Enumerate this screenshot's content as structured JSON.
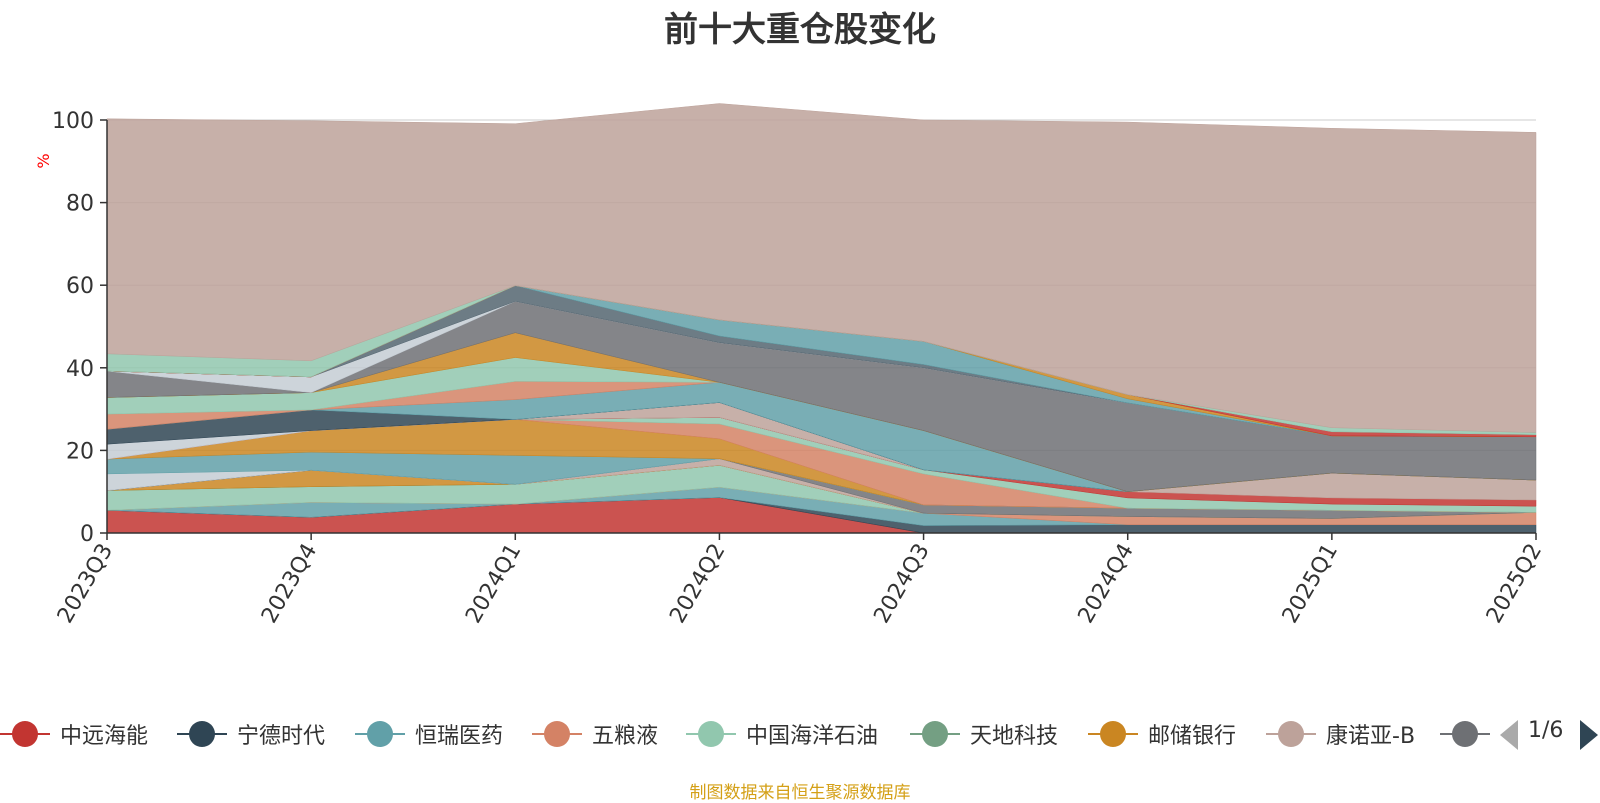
{
  "chart_data": {
    "type": "area",
    "title": "前十大重仓股变化",
    "ylabel": "%",
    "ylim": [
      0,
      100
    ],
    "yticks": [
      0,
      20,
      40,
      60,
      80,
      100
    ],
    "categories": [
      "2023Q3",
      "2023Q4",
      "2024Q1",
      "2024Q2",
      "2024Q3",
      "2024Q4",
      "2025Q1",
      "2025Q2"
    ],
    "stacked": true,
    "grid": true,
    "legend_position": "bottom",
    "series": [
      {
        "name": "中远海能",
        "color": "#c23531",
        "values": [
          5.5,
          3.8,
          7.0,
          8.6,
          0,
          0,
          0,
          0
        ]
      },
      {
        "name": "宁德时代",
        "color": "#2f4554",
        "values": [
          0,
          0,
          0,
          0,
          1.8,
          2.0,
          2.0,
          2.0
        ]
      },
      {
        "name": "恒瑞医药",
        "color": "#61a0a8",
        "values": [
          0,
          3.6,
          0,
          2.5,
          3.0,
          0,
          0,
          0
        ]
      },
      {
        "name": "五粮液",
        "color": "#d48265",
        "values": [
          0,
          0,
          0,
          0,
          0,
          2.0,
          1.5,
          3.0
        ]
      },
      {
        "name": "中国海洋石油",
        "color": "#91c7ae",
        "values": [
          4.8,
          3.8,
          4.8,
          5.3,
          0,
          0,
          0,
          0
        ]
      },
      {
        "name": "天地科技",
        "color": "#749f83",
        "values": [
          0,
          0,
          0,
          0,
          0,
          0,
          0,
          0
        ]
      },
      {
        "name": "邮储银行",
        "color": "#ca8622",
        "values": [
          0,
          4.0,
          0,
          0,
          0,
          0,
          0,
          0
        ]
      },
      {
        "name": "康诺亚-B",
        "color": "#bda29a",
        "values": [
          0,
          0,
          0,
          1.6,
          0,
          0,
          0,
          0
        ]
      },
      {
        "name": "",
        "color": "#6e7074",
        "values": [
          0,
          0,
          0,
          0,
          2.0,
          2.0,
          2.0,
          0
        ]
      },
      {
        "name": "",
        "color": "#546570",
        "values": [
          0,
          0,
          0,
          0,
          0,
          0,
          0,
          0
        ]
      },
      {
        "name": "",
        "color": "#c4ccd3",
        "values": [
          4.0,
          0,
          0,
          0,
          0,
          0,
          0,
          0
        ]
      },
      {
        "name": "",
        "color": "#61a0a8",
        "values": [
          3.6,
          4.4,
          7.0,
          0,
          0,
          0,
          0,
          0
        ]
      },
      {
        "name": "",
        "color": "#ca8622",
        "values": [
          0,
          5.2,
          8.7,
          4.8,
          0,
          0,
          0,
          0
        ]
      },
      {
        "name": "",
        "color": "#d48265",
        "values": [
          0,
          0,
          0,
          3.6,
          7.5,
          0,
          0,
          0
        ]
      },
      {
        "name": "",
        "color": "#91c7ae",
        "values": [
          0,
          0,
          0,
          1.6,
          1.0,
          2.5,
          1.5,
          1.5
        ]
      },
      {
        "name": "",
        "color": "#c23531",
        "values": [
          0,
          0,
          0,
          0,
          0,
          1.5,
          1.5,
          1.5
        ]
      },
      {
        "name": "",
        "color": "#bda29a",
        "values": [
          0,
          0,
          0,
          3.6,
          0,
          0,
          6.0,
          4.8
        ]
      },
      {
        "name": "",
        "color": "#c4ccd3",
        "values": [
          3.6,
          0,
          0,
          0,
          0,
          0,
          0,
          0
        ]
      },
      {
        "name": "",
        "color": "#2f4554",
        "values": [
          3.6,
          5.0,
          0,
          0,
          0,
          0,
          0,
          0
        ]
      },
      {
        "name": "",
        "color": "#61a0a8",
        "values": [
          0,
          0,
          4.8,
          4.9,
          9.5,
          0,
          0,
          0
        ]
      },
      {
        "name": "",
        "color": "#d48265",
        "values": [
          3.7,
          0,
          4.4,
          0,
          0,
          0,
          0,
          0
        ]
      },
      {
        "name": "",
        "color": "#91c7ae",
        "values": [
          4.0,
          4.2,
          5.8,
          0,
          0,
          0,
          0,
          0
        ]
      },
      {
        "name": "",
        "color": "#ca8622",
        "values": [
          0,
          0,
          6.0,
          0,
          0,
          0,
          0,
          0
        ]
      },
      {
        "name": "",
        "color": "#6e7074",
        "values": [
          6.4,
          0,
          7.6,
          9.6,
          15.2,
          21.5,
          9.0,
          10.5
        ]
      },
      {
        "name": "",
        "color": "#c4ccd3",
        "values": [
          0,
          3.8,
          0,
          0,
          0,
          0,
          0,
          0
        ]
      },
      {
        "name": "",
        "color": "#546570",
        "values": [
          0,
          0,
          3.8,
          1.6,
          0.8,
          0,
          0,
          0
        ]
      },
      {
        "name": "",
        "color": "#61a0a8",
        "values": [
          0,
          0,
          0,
          3.9,
          5.6,
          1.0,
          0,
          0
        ]
      },
      {
        "name": "",
        "color": "#ca8622",
        "values": [
          0,
          0,
          0,
          0,
          0,
          1.0,
          0,
          0
        ]
      },
      {
        "name": "",
        "color": "#c23531",
        "values": [
          0,
          0,
          0,
          0,
          0,
          0,
          1.0,
          0.5
        ]
      },
      {
        "name": "",
        "color": "#91c7ae",
        "values": [
          4.2,
          3.9,
          0,
          0,
          0,
          0,
          1.0,
          0.5
        ]
      },
      {
        "name": "",
        "color": "#bda29a",
        "values": [
          56.9,
          58.1,
          39.2,
          52.4,
          53.6,
          66.0,
          72.5,
          72.7
        ]
      }
    ],
    "source_note": "制图数据来自恒生聚源数据库"
  },
  "legend": {
    "items": [
      {
        "label": "中远海能",
        "color": "#c23531"
      },
      {
        "label": "宁德时代",
        "color": "#2f4554"
      },
      {
        "label": "恒瑞医药",
        "color": "#61a0a8"
      },
      {
        "label": "五粮液",
        "color": "#d48265"
      },
      {
        "label": "中国海洋石油",
        "color": "#91c7ae"
      },
      {
        "label": "天地科技",
        "color": "#749f83"
      },
      {
        "label": "邮储银行",
        "color": "#ca8622"
      },
      {
        "label": "康诺亚-B",
        "color": "#bda29a"
      },
      {
        "label": "",
        "color": "#6e7074"
      }
    ],
    "page": "1/6"
  }
}
